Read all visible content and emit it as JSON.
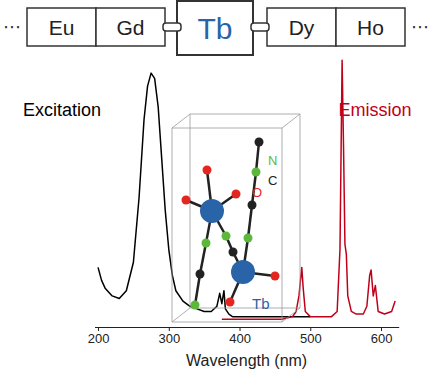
{
  "periodic_strip": {
    "ellipsis": "⋯",
    "elements": [
      "Eu",
      "Gd",
      "Tb",
      "Dy",
      "Ho"
    ],
    "color": "#2a64a8"
  },
  "structure": {
    "labels": [
      {
        "text": "O",
        "color": "#e3261f"
      },
      {
        "text": "N",
        "color": "#5cb83a"
      },
      {
        "text": "C",
        "color": "#222222"
      },
      {
        "text": "Tb",
        "color": "#2a64a8"
      }
    ]
  },
  "chart_data": {
    "type": "line",
    "x_label": "Wavelength (nm)",
    "xlim": [
      195,
      625
    ],
    "xticks": [
      200,
      300,
      400,
      500,
      600
    ],
    "ylim": [
      0,
      105
    ],
    "tick_labels": "x",
    "series": [
      {
        "name": "Excitation",
        "color": "#000000",
        "x": [
          200,
          205,
          210,
          220,
          230,
          240,
          250,
          258,
          265,
          270,
          275,
          280,
          285,
          290,
          295,
          300,
          305,
          310,
          320,
          330,
          340,
          350,
          360,
          368,
          372,
          375,
          378,
          380,
          385,
          390,
          400,
          420,
          440,
          460,
          480,
          500
        ],
        "values": [
          23,
          18,
          15,
          12,
          11,
          14,
          25,
          50,
          80,
          93,
          98,
          96,
          85,
          65,
          45,
          30,
          20,
          14,
          10,
          8,
          7,
          6,
          6,
          8,
          13,
          9,
          14,
          7,
          5,
          4,
          4,
          4,
          4,
          4,
          4,
          4
        ]
      },
      {
        "name": "Emission",
        "color": "#c0001a",
        "x": [
          375,
          400,
          420,
          440,
          460,
          475,
          480,
          484,
          488,
          490,
          493,
          500,
          510,
          530,
          538,
          542,
          545,
          547,
          549,
          551,
          553,
          558,
          565,
          575,
          580,
          584,
          586,
          589,
          592,
          596,
          605,
          615,
          620
        ],
        "values": [
          3,
          3,
          3,
          3,
          3,
          4,
          6,
          12,
          23,
          15,
          6,
          4,
          4,
          4,
          6,
          30,
          103,
          70,
          32,
          28,
          12,
          6,
          5,
          5,
          8,
          20,
          22,
          12,
          16,
          6,
          5,
          6,
          10
        ]
      }
    ]
  }
}
